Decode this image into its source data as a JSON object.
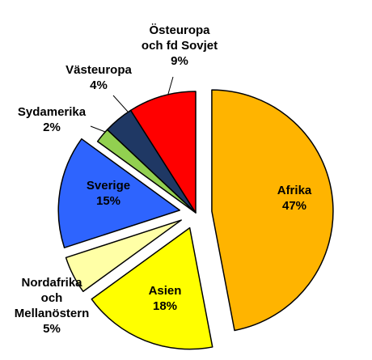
{
  "chart_data": {
    "type": "pie",
    "title": "",
    "legend": "none",
    "slices": [
      {
        "label_lines": [
          "Afrika"
        ],
        "value": 47,
        "value_label": "47%",
        "color": "#FFB400",
        "exploded": true
      },
      {
        "label_lines": [
          "Asien"
        ],
        "value": 18,
        "value_label": "18%",
        "color": "#FFFF00",
        "exploded": true
      },
      {
        "label_lines": [
          "Nordafrika",
          "och",
          "Mellanöstern"
        ],
        "value": 5,
        "value_label": "5%",
        "color": "#FFFFA6",
        "exploded": true
      },
      {
        "label_lines": [
          "Sverige"
        ],
        "value": 15,
        "value_label": "15%",
        "color": "#2E64FE",
        "exploded": true
      },
      {
        "label_lines": [
          "Sydamerika"
        ],
        "value": 2,
        "value_label": "2%",
        "color": "#92D050",
        "exploded": false
      },
      {
        "label_lines": [
          "Västeuropa"
        ],
        "value": 4,
        "value_label": "4%",
        "color": "#1F3864",
        "exploded": false
      },
      {
        "label_lines": [
          "Östeuropa",
          "och fd Sovjet"
        ],
        "value": 9,
        "value_label": "9%",
        "color": "#FF0000",
        "exploded": false
      }
    ]
  }
}
